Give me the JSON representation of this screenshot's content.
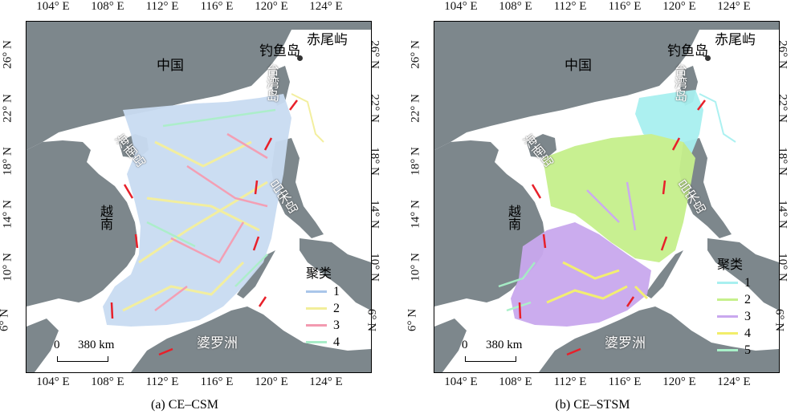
{
  "panels": [
    {
      "caption": "(a) CE–CSM",
      "legend_title": "聚类",
      "clusters": [
        {
          "label": "1",
          "color": "#a9c6ea"
        },
        {
          "label": "2",
          "color": "#f2ee9a"
        },
        {
          "label": "3",
          "color": "#f39ab0"
        },
        {
          "label": "4",
          "color": "#a8edc8"
        }
      ]
    },
    {
      "caption": "(b) CE–STSM",
      "legend_title": "聚类",
      "clusters": [
        {
          "label": "1",
          "color": "#a8f0f0"
        },
        {
          "label": "2",
          "color": "#c6f08c"
        },
        {
          "label": "3",
          "color": "#c9a8ee"
        },
        {
          "label": "4",
          "color": "#f2ee6a"
        },
        {
          "label": "5",
          "color": "#a8f0c8"
        }
      ]
    }
  ],
  "axes": {
    "lon_ticks": [
      "104° E",
      "108° E",
      "112° E",
      "116° E",
      "120° E",
      "124° E"
    ],
    "lat_ticks": [
      "26° N",
      "22° N",
      "18° N",
      "14° N",
      "10° N",
      "6° N"
    ]
  },
  "places": {
    "china": "中国",
    "taiwan": "台湾岛",
    "diaoyu": "钓鱼岛",
    "chiwei": "赤尾屿",
    "hainan": "海南岛",
    "vietnam": "越南",
    "luzon": "吕宋岛",
    "borneo": "婆罗洲"
  },
  "scalebar": {
    "zero": "0",
    "distance": "380 km"
  },
  "colors": {
    "land": "#7d878c",
    "sea": "#ffffff",
    "boundary": "#e8202a"
  }
}
